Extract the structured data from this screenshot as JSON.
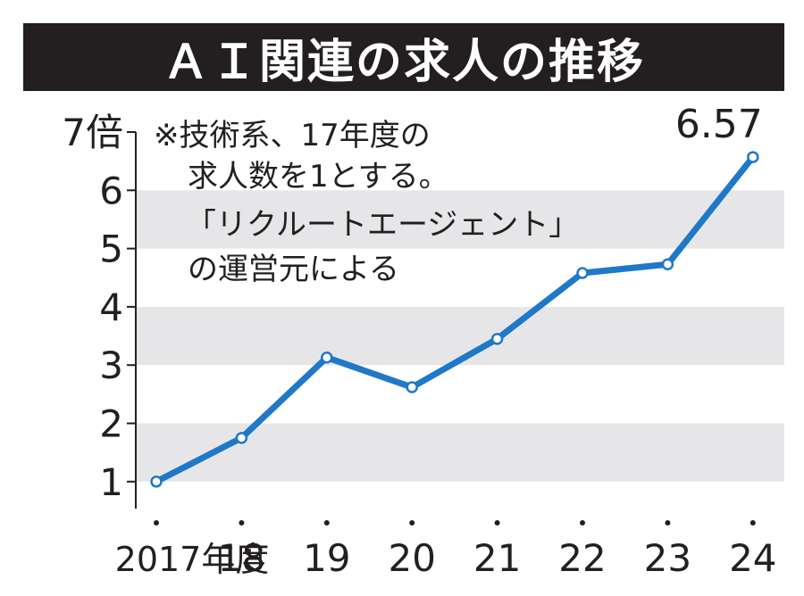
{
  "chart_data": {
    "type": "line",
    "title": "ＡＩ関連の求人の推移",
    "y_unit_label": "7倍",
    "x": [
      "2017年度",
      "18",
      "19",
      "20",
      "21",
      "22",
      "23",
      "24"
    ],
    "series": [
      {
        "values": [
          1,
          1.75,
          3.13,
          2.62,
          3.45,
          4.58,
          4.73,
          6.57
        ]
      }
    ],
    "ylim": [
      0.5,
      7
    ],
    "yticks": [
      1,
      2,
      3,
      4,
      5,
      6,
      7
    ],
    "last_value_label": "6.57",
    "note": [
      "※技術系、17年度の",
      "求人数を1とする。",
      "「リクルートエージェント」",
      "の運営元による"
    ],
    "grid": "alternating horizontal bands",
    "colors": {
      "line": "#1f78c8",
      "band": "#e6e6e8",
      "text": "#231f20",
      "title_bg": "#231f20"
    }
  }
}
